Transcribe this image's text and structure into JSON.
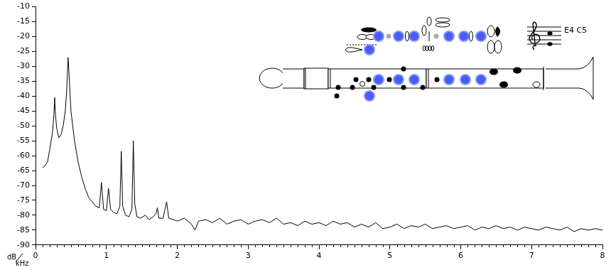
{
  "chart_data": {
    "type": "line",
    "x_label": "kHz",
    "y_label": "dB",
    "annotation": "E4 C5",
    "color": "#000000",
    "grid": false,
    "xlim": [
      0,
      8
    ],
    "ylim": [
      -90,
      -10
    ],
    "xticks": [
      0,
      1,
      2,
      3,
      4,
      5,
      6,
      7,
      8
    ],
    "yticks": [
      -90,
      -85,
      -80,
      -75,
      -70,
      -65,
      -60,
      -55,
      -50,
      -45,
      -40,
      -35,
      -30,
      -25,
      -20,
      -15,
      -10
    ],
    "x": [
      0.1,
      0.13,
      0.17,
      0.2,
      0.22,
      0.24,
      0.26,
      0.27,
      0.28,
      0.3,
      0.33,
      0.36,
      0.39,
      0.42,
      0.44,
      0.46,
      0.48,
      0.5,
      0.55,
      0.6,
      0.65,
      0.7,
      0.75,
      0.8,
      0.85,
      0.9,
      0.93,
      0.96,
      1.0,
      1.03,
      1.06,
      1.1,
      1.15,
      1.19,
      1.21,
      1.23,
      1.27,
      1.32,
      1.36,
      1.38,
      1.4,
      1.43,
      1.48,
      1.55,
      1.6,
      1.66,
      1.7,
      1.72,
      1.74,
      1.8,
      1.85,
      1.88,
      1.95,
      2.0,
      2.1,
      2.2,
      2.25,
      2.3,
      2.4,
      2.5,
      2.6,
      2.7,
      2.8,
      2.9,
      3.0,
      3.1,
      3.2,
      3.3,
      3.4,
      3.5,
      3.6,
      3.7,
      3.8,
      3.9,
      4.0,
      4.1,
      4.2,
      4.3,
      4.4,
      4.5,
      4.6,
      4.7,
      4.8,
      4.9,
      5.0,
      5.1,
      5.2,
      5.3,
      5.4,
      5.5,
      5.6,
      5.7,
      5.8,
      5.9,
      6.0,
      6.1,
      6.2,
      6.3,
      6.4,
      6.5,
      6.6,
      6.7,
      6.8,
      6.9,
      7.0,
      7.1,
      7.2,
      7.3,
      7.4,
      7.5,
      7.6,
      7.7,
      7.8,
      7.9,
      8.0
    ],
    "values": [
      -64,
      -63.5,
      -62,
      -58,
      -55,
      -52,
      -46,
      -40.5,
      -46,
      -51,
      -54,
      -53,
      -50,
      -45,
      -38,
      -27,
      -36,
      -45,
      -55,
      -62,
      -67,
      -71,
      -74,
      -75.5,
      -77,
      -77.5,
      -69,
      -78,
      -78.5,
      -71,
      -78,
      -79,
      -79.5,
      -77,
      -58.5,
      -77,
      -80,
      -80.5,
      -78,
      -55,
      -76,
      -80.5,
      -81,
      -80,
      -81.5,
      -80.5,
      -79.5,
      -77.5,
      -81,
      -81,
      -75.5,
      -81,
      -81.5,
      -82,
      -81,
      -83,
      -85,
      -82,
      -81.5,
      -82.5,
      -81,
      -83,
      -82,
      -81.5,
      -83,
      -82,
      -81.5,
      -82.5,
      -81,
      -83,
      -82.5,
      -83.5,
      -82,
      -83,
      -82.5,
      -83.5,
      -82,
      -83,
      -82.5,
      -84,
      -83,
      -84,
      -82.5,
      -84.5,
      -84,
      -83,
      -84.5,
      -83.5,
      -84,
      -83,
      -84.5,
      -84,
      -83.5,
      -84.5,
      -84,
      -83.5,
      -85,
      -84,
      -84.5,
      -83.5,
      -84.5,
      -84,
      -85,
      -84,
      -84.5,
      -85,
      -84,
      -84.5,
      -85,
      -84,
      -85.5,
      -84.5,
      -85,
      -84.5,
      -85
    ]
  }
}
